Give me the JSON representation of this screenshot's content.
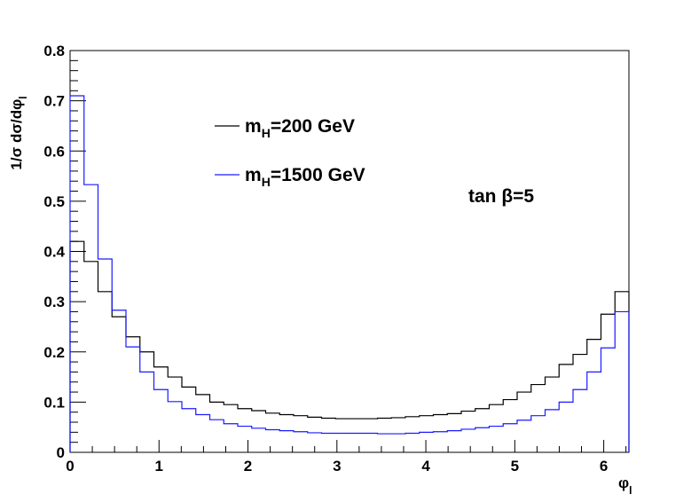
{
  "chart_data": {
    "type": "histogram-step",
    "title": "",
    "xlabel": "φ",
    "xlabel_sub": "l",
    "ylabel": "1/σ dσ/dφ",
    "ylabel_sub": "l",
    "xlim": [
      0,
      6.2832
    ],
    "ylim": [
      0,
      0.8
    ],
    "x_ticks": [
      0,
      1,
      2,
      3,
      4,
      5,
      6
    ],
    "x_tick_labels": [
      "0",
      "1",
      "2",
      "3",
      "4",
      "5",
      "6"
    ],
    "y_ticks": [
      0,
      0.1,
      0.2,
      0.3,
      0.4,
      0.5,
      0.6,
      0.7,
      0.8
    ],
    "y_tick_labels": [
      "0",
      "0.1",
      "0.2",
      "0.3",
      "0.4",
      "0.5",
      "0.6",
      "0.7",
      "0.8"
    ],
    "bins": 40,
    "series": [
      {
        "name": "m_H=200 GeV",
        "legend_main": "m",
        "legend_sub": "H",
        "legend_rest": "=200 GeV",
        "color": "#000000",
        "values": [
          0.42,
          0.38,
          0.32,
          0.27,
          0.23,
          0.2,
          0.17,
          0.15,
          0.13,
          0.115,
          0.1,
          0.095,
          0.087,
          0.083,
          0.078,
          0.075,
          0.073,
          0.07,
          0.068,
          0.067,
          0.067,
          0.067,
          0.068,
          0.069,
          0.071,
          0.073,
          0.075,
          0.077,
          0.082,
          0.087,
          0.095,
          0.105,
          0.12,
          0.135,
          0.15,
          0.175,
          0.195,
          0.225,
          0.275,
          0.32
        ]
      },
      {
        "name": "m_H=1500 GeV",
        "legend_main": "m",
        "legend_sub": "H",
        "legend_rest": "=1500 GeV",
        "color": "#1a1aff",
        "values": [
          0.71,
          0.533,
          0.385,
          0.283,
          0.21,
          0.16,
          0.125,
          0.101,
          0.087,
          0.075,
          0.065,
          0.057,
          0.052,
          0.048,
          0.045,
          0.043,
          0.041,
          0.039,
          0.038,
          0.038,
          0.038,
          0.038,
          0.037,
          0.037,
          0.038,
          0.04,
          0.041,
          0.043,
          0.046,
          0.049,
          0.052,
          0.057,
          0.064,
          0.073,
          0.085,
          0.1,
          0.125,
          0.16,
          0.208,
          0.28
        ]
      }
    ],
    "annotation": "tan β=5"
  }
}
